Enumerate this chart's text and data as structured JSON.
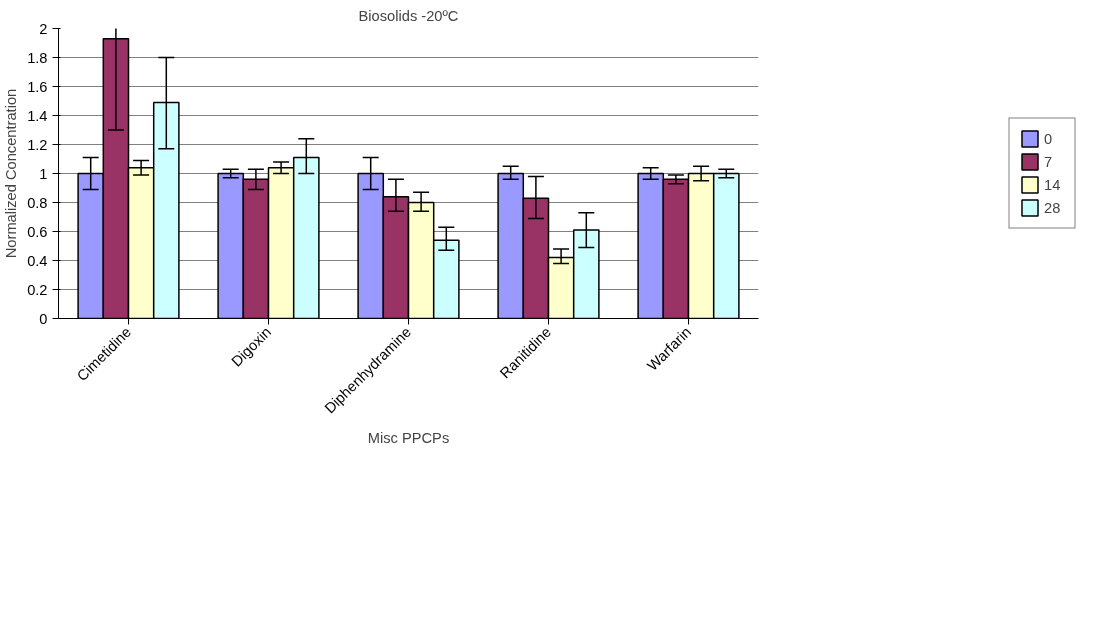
{
  "chart_data": {
    "type": "bar",
    "title": "Biosolids -20ºC",
    "xlabel": "Misc PPCPs",
    "ylabel": "Normalized Concentration",
    "categories": [
      "Cimetidine",
      "Digoxin",
      "Diphenhydramine",
      "Ranitidine",
      "Warfarin"
    ],
    "series": [
      {
        "name": "0",
        "color": "#9999ff",
        "values": [
          1.0,
          1.0,
          1.0,
          1.0,
          1.0
        ],
        "errors": [
          0.11,
          0.03,
          0.11,
          [
            0.96,
            1.05
          ],
          0.04
        ]
      },
      {
        "name": "7",
        "color": "#993366",
        "values": [
          1.93,
          0.96,
          0.84,
          0.83,
          0.96
        ],
        "errors": [
          [
            1.3,
            2.02
          ],
          [
            0.89,
            1.03
          ],
          [
            0.74,
            0.96
          ],
          [
            0.69,
            0.98
          ],
          [
            0.93,
            0.99
          ]
        ]
      },
      {
        "name": "14",
        "color": "#ffffcc",
        "values": [
          1.04,
          1.04,
          0.8,
          0.42,
          1.0
        ],
        "errors": [
          0.05,
          0.04,
          [
            0.74,
            0.87
          ],
          [
            0.38,
            0.48
          ],
          0.05
        ]
      },
      {
        "name": "28",
        "color": "#ccffff",
        "values": [
          1.49,
          1.11,
          0.54,
          0.61,
          1.0
        ],
        "errors": [
          [
            1.17,
            1.8
          ],
          [
            1.0,
            1.24
          ],
          [
            0.47,
            0.63
          ],
          [
            0.49,
            0.73
          ],
          0.03
        ]
      }
    ],
    "ylim": [
      0,
      2
    ],
    "yticks": [
      0,
      0.2,
      0.4,
      0.6,
      0.8,
      1,
      1.2,
      1.4,
      1.6,
      1.8,
      2
    ],
    "grid": "y",
    "legend": "right"
  }
}
